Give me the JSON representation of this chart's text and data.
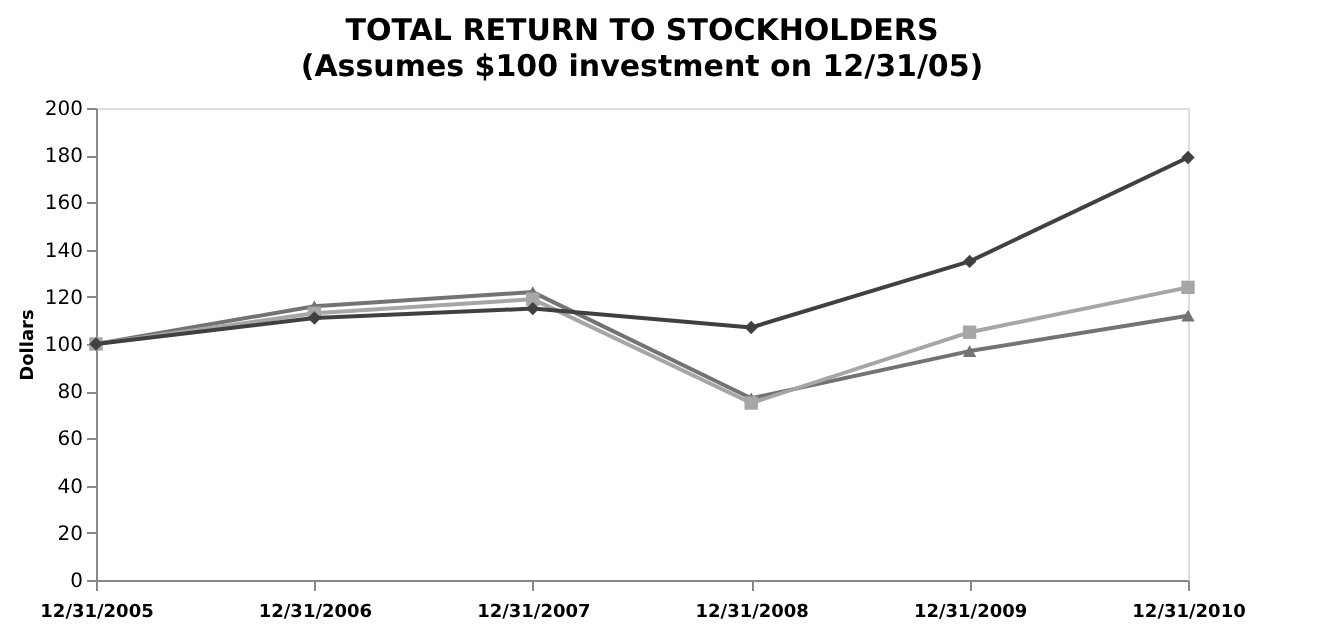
{
  "chart_data": {
    "type": "line",
    "title": "TOTAL RETURN TO STOCKHOLDERS",
    "subtitle": "(Assumes $100 investment on 12/31/05)",
    "ylabel": "Dollars",
    "categories": [
      "12/31/2005",
      "12/31/2006",
      "12/31/2007",
      "12/31/2008",
      "12/31/2009",
      "12/31/2010"
    ],
    "series": [
      {
        "color": "#404040",
        "marker": "diamond",
        "values": [
          100,
          111,
          115,
          107,
          135,
          179
        ]
      },
      {
        "color": "#a6a6a6",
        "marker": "square",
        "values": [
          100,
          113,
          119,
          75,
          105,
          124
        ]
      },
      {
        "color": "#737373",
        "marker": "triangle",
        "values": [
          100,
          116,
          122,
          77,
          97,
          112
        ]
      }
    ],
    "ylim": [
      0,
      200
    ],
    "yticks": [
      0,
      20,
      40,
      60,
      80,
      100,
      120,
      140,
      160,
      180,
      200
    ],
    "grid": false
  }
}
